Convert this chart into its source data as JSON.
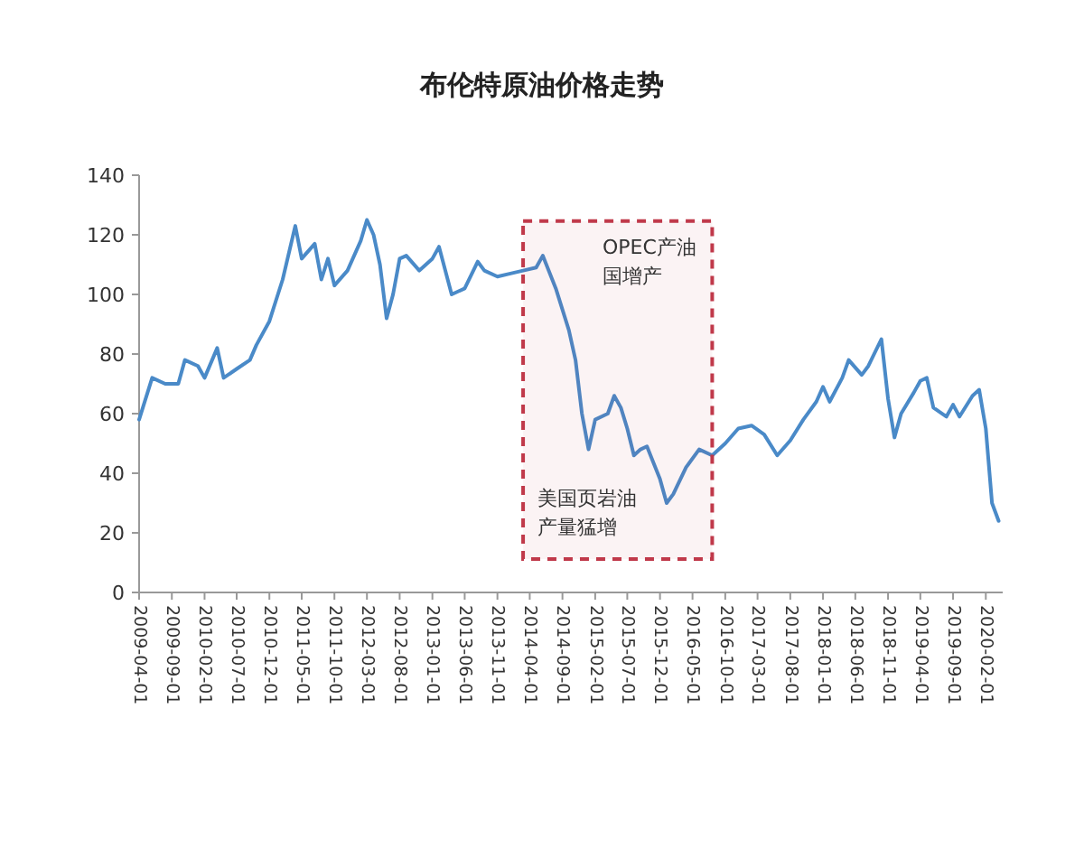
{
  "chart_data": {
    "type": "line",
    "title": "布伦特原油价格走势",
    "x": [
      "2009-04",
      "2009-06",
      "2009-08",
      "2009-10",
      "2009-11",
      "2010-01",
      "2010-02",
      "2010-04",
      "2010-05",
      "2010-07",
      "2010-09",
      "2010-10",
      "2010-12",
      "2011-02",
      "2011-04",
      "2011-05",
      "2011-07",
      "2011-08",
      "2011-09",
      "2011-10",
      "2011-12",
      "2012-02",
      "2012-03",
      "2012-04",
      "2012-05",
      "2012-06",
      "2012-07",
      "2012-08",
      "2012-09",
      "2012-11",
      "2013-01",
      "2013-02",
      "2013-04",
      "2013-06",
      "2013-08",
      "2013-09",
      "2013-11",
      "2014-01",
      "2014-03",
      "2014-05",
      "2014-06",
      "2014-08",
      "2014-10",
      "2014-11",
      "2014-12",
      "2015-01",
      "2015-02",
      "2015-04",
      "2015-05",
      "2015-06",
      "2015-07",
      "2015-08",
      "2015-09",
      "2015-10",
      "2015-12",
      "2016-01",
      "2016-02",
      "2016-04",
      "2016-06",
      "2016-08",
      "2016-10",
      "2016-12",
      "2017-02",
      "2017-04",
      "2017-06",
      "2017-08",
      "2017-10",
      "2017-12",
      "2018-01",
      "2018-02",
      "2018-04",
      "2018-05",
      "2018-07",
      "2018-08",
      "2018-10",
      "2018-11",
      "2018-12",
      "2019-01",
      "2019-03",
      "2019-04",
      "2019-05",
      "2019-06",
      "2019-08",
      "2019-09",
      "2019-10",
      "2019-12",
      "2020-01",
      "2020-02",
      "2020-03",
      "2020-04"
    ],
    "series": [
      {
        "color": "#4a8ac8",
        "values": [
          58,
          72,
          70,
          70,
          78,
          76,
          72,
          82,
          72,
          75,
          78,
          83,
          91,
          105,
          123,
          112,
          117,
          105,
          112,
          103,
          108,
          118,
          125,
          120,
          110,
          92,
          100,
          112,
          113,
          108,
          112,
          116,
          100,
          102,
          111,
          108,
          106,
          107,
          108,
          109,
          113,
          102,
          88,
          78,
          60,
          48,
          58,
          60,
          66,
          62,
          55,
          46,
          48,
          49,
          38,
          30,
          33,
          42,
          48,
          46,
          50,
          55,
          56,
          53,
          46,
          51,
          58,
          64,
          69,
          64,
          72,
          78,
          73,
          76,
          85,
          65,
          52,
          60,
          67,
          71,
          72,
          62,
          59,
          63,
          59,
          66,
          68,
          55,
          30,
          24
        ]
      }
    ],
    "xlim": [
      "2009-04-01",
      "2020-04-20"
    ],
    "xticks": [
      "2009-04-01",
      "2009-09-01",
      "2010-02-01",
      "2010-07-01",
      "2010-12-01",
      "2011-05-01",
      "2011-10-01",
      "2012-03-01",
      "2012-08-01",
      "2013-01-01",
      "2013-06-01",
      "2013-11-01",
      "2014-04-01",
      "2014-09-01",
      "2015-02-01",
      "2015-07-01",
      "2015-12-01",
      "2016-05-01",
      "2016-10-01",
      "2017-03-01",
      "2017-08-01",
      "2018-01-01",
      "2018-06-01",
      "2018-11-01",
      "2019-04-01",
      "2019-09-01",
      "2020-02-01"
    ],
    "ylim": [
      0,
      140
    ],
    "yticks": [
      0,
      20,
      40,
      60,
      80,
      100,
      120,
      140
    ],
    "bands": [
      {
        "axis": "x",
        "from": "2014-03",
        "to": "2016-08",
        "color": "#c0394a"
      }
    ],
    "annotations": [
      "OPEC产油国增产",
      "美国页岩油产量猛增"
    ]
  }
}
